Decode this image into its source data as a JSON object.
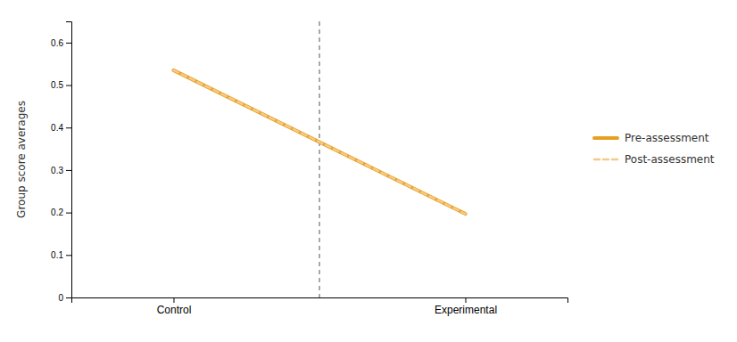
{
  "chart_data": {
    "type": "line",
    "ylabel": "Group score averages",
    "categories": [
      "Control",
      "Experimental"
    ],
    "series": [
      {
        "name": "Pre-assessment",
        "color": "#E8A020",
        "line_style": "solid",
        "values": [
          0.535,
          0.197
        ]
      },
      {
        "name": "Post-assessment",
        "color": "#F5C98A",
        "line_style": "dashed",
        "values": [
          0.535,
          0.197
        ]
      }
    ],
    "ylim": [
      0,
      0.65
    ],
    "yticks": [
      0,
      0.1,
      0.2,
      0.3,
      0.4,
      0.5,
      0.6
    ],
    "legend": "right"
  }
}
